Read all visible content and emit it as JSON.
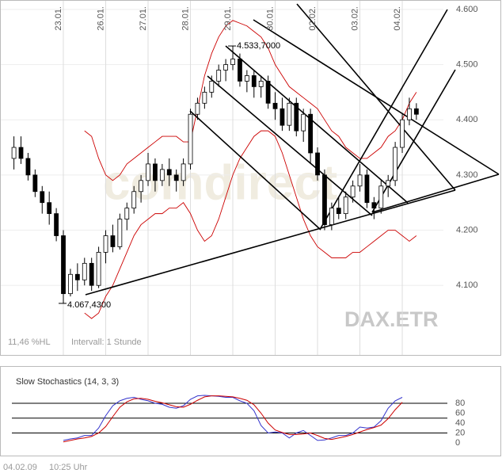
{
  "chart_data": [
    {
      "type": "candlestick",
      "symbol": "DAX.ETR",
      "watermark": "comdirect",
      "range_label": "11,46 %HL",
      "interval_label": "Intervall: 1 Stunde",
      "categories": [
        null,
        null,
        null,
        null,
        null,
        null,
        null,
        "23.01.",
        null,
        null,
        null,
        null,
        null,
        "26.01.",
        null,
        null,
        null,
        null,
        null,
        "27.01.",
        null,
        null,
        null,
        null,
        null,
        "28.01.",
        null,
        null,
        null,
        null,
        null,
        "29.01.",
        null,
        null,
        null,
        null,
        null,
        "30.01.",
        null,
        null,
        null,
        null,
        null,
        "02.02.",
        null,
        null,
        null,
        null,
        null,
        "03.02.",
        null,
        null,
        null,
        null,
        null,
        "04.02.",
        null,
        null
      ],
      "ohlc": [
        [
          4330,
          4370,
          4310,
          4350
        ],
        [
          4350,
          4370,
          4320,
          4330
        ],
        [
          4330,
          4340,
          4290,
          4300
        ],
        [
          4300,
          4310,
          4260,
          4270
        ],
        [
          4270,
          4280,
          4230,
          4250
        ],
        [
          4250,
          4270,
          4210,
          4230
        ],
        [
          4230,
          4240,
          4180,
          4190
        ],
        [
          4190,
          4200,
          4067.43,
          4085
        ],
        [
          4085,
          4130,
          4080,
          4120
        ],
        [
          4120,
          4140,
          4090,
          4110
        ],
        [
          4110,
          4150,
          4100,
          4140
        ],
        [
          4140,
          4150,
          4090,
          4100
        ],
        [
          4100,
          4170,
          4095,
          4160
        ],
        [
          4160,
          4200,
          4140,
          4190
        ],
        [
          4190,
          4210,
          4160,
          4170
        ],
        [
          4170,
          4230,
          4165,
          4220
        ],
        [
          4220,
          4250,
          4200,
          4240
        ],
        [
          4240,
          4280,
          4230,
          4270
        ],
        [
          4270,
          4300,
          4250,
          4290
        ],
        [
          4290,
          4340,
          4280,
          4320
        ],
        [
          4320,
          4330,
          4270,
          4290
        ],
        [
          4290,
          4320,
          4280,
          4310
        ],
        [
          4310,
          4330,
          4280,
          4300
        ],
        [
          4300,
          4310,
          4270,
          4290
        ],
        [
          4290,
          4330,
          4280,
          4320
        ],
        [
          4320,
          4420,
          4310,
          4410
        ],
        [
          4410,
          4440,
          4400,
          4430
        ],
        [
          4430,
          4460,
          4420,
          4450
        ],
        [
          4450,
          4480,
          4440,
          4470
        ],
        [
          4470,
          4500,
          4460,
          4490
        ],
        [
          4490,
          4510,
          4470,
          4500
        ],
        [
          4500,
          4533.7,
          4490,
          4510
        ],
        [
          4510,
          4520,
          4460,
          4470
        ],
        [
          4470,
          4490,
          4450,
          4480
        ],
        [
          4480,
          4490,
          4440,
          4460
        ],
        [
          4460,
          4480,
          4440,
          4470
        ],
        [
          4470,
          4480,
          4420,
          4430
        ],
        [
          4430,
          4450,
          4400,
          4420
        ],
        [
          4420,
          4440,
          4380,
          4390
        ],
        [
          4390,
          4440,
          4380,
          4430
        ],
        [
          4430,
          4440,
          4370,
          4380
        ],
        [
          4380,
          4420,
          4360,
          4410
        ],
        [
          4410,
          4420,
          4320,
          4340
        ],
        [
          4340,
          4350,
          4290,
          4300
        ],
        [
          4300,
          4310,
          4200,
          4210
        ],
        [
          4210,
          4250,
          4200,
          4240
        ],
        [
          4240,
          4260,
          4220,
          4230
        ],
        [
          4230,
          4270,
          4220,
          4260
        ],
        [
          4260,
          4290,
          4250,
          4280
        ],
        [
          4280,
          4320,
          4270,
          4300
        ],
        [
          4300,
          4310,
          4240,
          4250
        ],
        [
          4250,
          4260,
          4220,
          4240
        ],
        [
          4240,
          4290,
          4230,
          4280
        ],
        [
          4280,
          4300,
          4260,
          4290
        ],
        [
          4290,
          4360,
          4280,
          4350
        ],
        [
          4350,
          4410,
          4340,
          4400
        ],
        [
          4400,
          4440,
          4390,
          4420
        ],
        [
          4420,
          4430,
          4400,
          4410
        ]
      ],
      "bands": {
        "color": "#cc0000",
        "upper": [
          null,
          null,
          null,
          null,
          null,
          null,
          null,
          null,
          null,
          null,
          4380,
          4370,
          4330,
          4300,
          4290,
          4300,
          4320,
          4330,
          4340,
          4350,
          4360,
          4370,
          4370,
          4370,
          4360,
          4360,
          4420,
          4480,
          4520,
          4550,
          4570,
          4580,
          4575,
          4570,
          4560,
          4550,
          4530,
          4500,
          4480,
          4460,
          4450,
          4440,
          4430,
          4420,
          4400,
          4380,
          4370,
          4350,
          4340,
          4330,
          4330,
          4340,
          4350,
          4370,
          4380,
          4400,
          4430,
          4450
        ],
        "lower": [
          null,
          null,
          null,
          null,
          null,
          null,
          null,
          null,
          null,
          null,
          4050,
          4040,
          4050,
          4080,
          4100,
          4130,
          4160,
          4190,
          4210,
          4220,
          4230,
          4230,
          4240,
          4240,
          4250,
          4230,
          4200,
          4180,
          4190,
          4220,
          4260,
          4300,
          4330,
          4350,
          4370,
          4380,
          4380,
          4370,
          4340,
          4300,
          4260,
          4220,
          4190,
          4170,
          4160,
          4150,
          4150,
          4150,
          4160,
          4160,
          4170,
          4180,
          4190,
          4200,
          4200,
          4190,
          4180,
          4190
        ]
      },
      "annotations": [
        {
          "label": "4.533,7000"
        },
        {
          "label": "4.067,4300"
        }
      ],
      "ylim": [
        3974,
        4617
      ],
      "yticks": [
        {
          "value": 4100,
          "label": "4.100"
        },
        {
          "value": 4200,
          "label": "4.200"
        },
        {
          "value": 4300,
          "label": "4.300"
        },
        {
          "value": 4400,
          "label": "4.400"
        },
        {
          "value": 4500,
          "label": "4.500"
        },
        {
          "value": 4600,
          "label": "4.600"
        }
      ],
      "grid": true
    },
    {
      "type": "line",
      "title": "Slow Stochastics (14, 3, 3)",
      "series": [
        {
          "color": "#3333cc",
          "values": [
            null,
            null,
            null,
            null,
            null,
            null,
            null,
            5,
            8,
            10,
            15,
            15,
            30,
            55,
            75,
            85,
            90,
            92,
            88,
            85,
            80,
            78,
            72,
            70,
            75,
            88,
            95,
            96,
            95,
            94,
            92,
            92,
            85,
            80,
            65,
            35,
            20,
            22,
            20,
            10,
            20,
            25,
            15,
            5,
            6,
            10,
            15,
            15,
            20,
            32,
            30,
            32,
            45,
            70,
            85,
            92,
            null,
            null
          ]
        },
        {
          "color": "#cc0000",
          "values": [
            null,
            null,
            null,
            null,
            null,
            null,
            null,
            2,
            5,
            8,
            10,
            13,
            20,
            33,
            53,
            72,
            83,
            89,
            90,
            88,
            84,
            81,
            77,
            73,
            72,
            78,
            86,
            93,
            95,
            95,
            94,
            93,
            90,
            86,
            77,
            60,
            40,
            26,
            21,
            17,
            17,
            18,
            20,
            15,
            9,
            7,
            10,
            13,
            17,
            22,
            27,
            31,
            36,
            49,
            67,
            82,
            null,
            null
          ]
        }
      ],
      "ylim": [
        0,
        100
      ],
      "yticks": [
        0,
        20,
        40,
        60,
        80
      ],
      "levels": [
        20,
        50,
        80
      ]
    }
  ],
  "footer": {
    "date": "04.02.09",
    "time": "10:25 Uhr"
  }
}
